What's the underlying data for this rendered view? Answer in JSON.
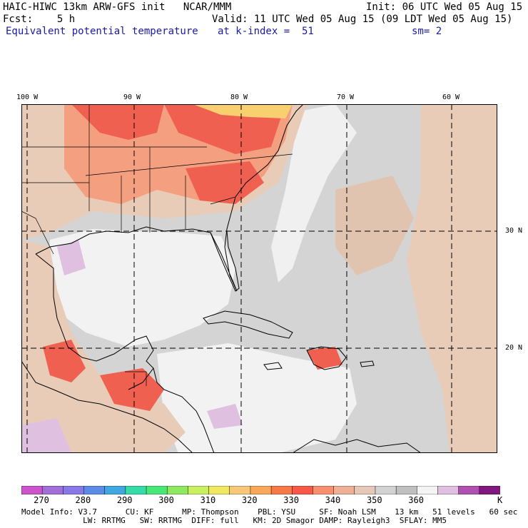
{
  "header": {
    "line1_left": "HAIC-HIWC 13km ARW-GFS init   NCAR/MMM",
    "line1_right": "Init: 06 UTC Wed 05 Aug 15",
    "line2_left": "Fcst:    5 h",
    "line2_right": "Valid: 11 UTC Wed 05 Aug 15 (09 LDT Wed 05 Aug 15)",
    "field_name": "Equivalent potential temperature",
    "level": "at k-index =  51",
    "smoothing": "sm= 2"
  },
  "map": {
    "lon_labels": [
      "100 W",
      "90 W",
      "80 W",
      "70 W",
      "60 W"
    ],
    "lat_labels": [
      "30 N",
      "20 N"
    ],
    "colors": {
      "land_outline": "#000000",
      "grid": "#000000",
      "background": "#f0f0f0"
    }
  },
  "colorbar": {
    "unit": "K",
    "tick_labels": [
      "270",
      "280",
      "290",
      "300",
      "310",
      "320",
      "330",
      "340",
      "350",
      "360"
    ],
    "colors": [
      "#cc55cc",
      "#a070d8",
      "#8878e8",
      "#5c8ce8",
      "#40a8e0",
      "#36dca8",
      "#48e878",
      "#8ee860",
      "#c8f060",
      "#f0e860",
      "#f8c878",
      "#f8a858",
      "#f87848",
      "#f85848",
      "#f89070",
      "#f0b098",
      "#e6c8b8",
      "#d2d2d2",
      "#c0c0c0",
      "#f4f4f4",
      "#e0c0e0",
      "#b050b0",
      "#801880"
    ]
  },
  "footer": {
    "line1": "Model Info: V3.7      CU: KF      MP: Thompson    PBL: YSU     SF: Noah LSM    13 km   51 levels   60 sec",
    "line2": "             LW: RRTMG   SW: RRTMG  DIFF: full   KM: 2D Smagor DAMP: Rayleigh3  SFLAY: MM5"
  }
}
